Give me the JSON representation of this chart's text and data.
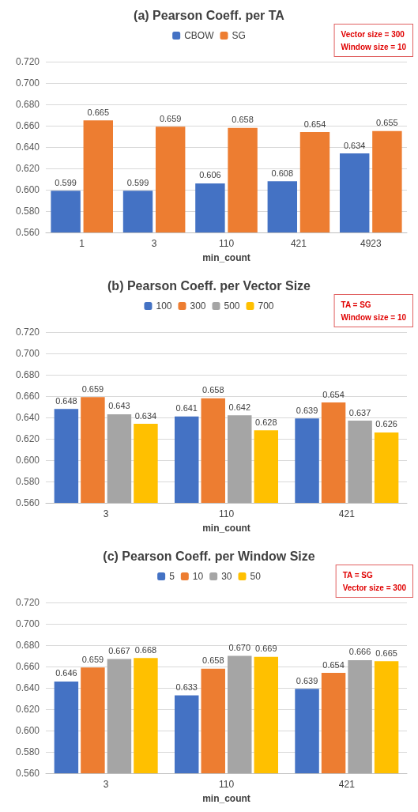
{
  "chart_data": [
    {
      "type": "bar",
      "title": "(a) Pearson Coeff. per TA",
      "xlabel": "min_count",
      "categories": [
        "1",
        "3",
        "110",
        "421",
        "4923"
      ],
      "series": [
        {
          "name": "CBOW",
          "color": "#4472c4",
          "values": [
            0.599,
            0.599,
            0.606,
            0.608,
            0.634
          ]
        },
        {
          "name": "SG",
          "color": "#ed7d31",
          "values": [
            0.665,
            0.659,
            0.658,
            0.654,
            0.655
          ]
        }
      ],
      "ylim": [
        0.56,
        0.72
      ],
      "yticks": [
        {
          "value": 0.56,
          "label": "0.560"
        },
        {
          "value": 0.58,
          "label": "0.580"
        },
        {
          "value": 0.6,
          "label": "0.600"
        },
        {
          "value": 0.62,
          "label": "0.620"
        },
        {
          "value": 0.64,
          "label": "0.640"
        },
        {
          "value": 0.66,
          "label": "0.660"
        },
        {
          "value": 0.68,
          "label": "0.680"
        },
        {
          "value": 0.7,
          "label": "0.700"
        },
        {
          "value": 0.72,
          "label": "0.720"
        }
      ],
      "grid": "y",
      "legend": "top",
      "data_labels": true,
      "annotations": [
        "Vector size = 300",
        "Window size = 10"
      ]
    },
    {
      "type": "bar",
      "title": "(b) Pearson Coeff. per Vector Size",
      "xlabel": "min_count",
      "categories": [
        "3",
        "110",
        "421"
      ],
      "series": [
        {
          "name": "100",
          "color": "#4472c4",
          "values": [
            0.648,
            0.641,
            0.639
          ]
        },
        {
          "name": "300",
          "color": "#ed7d31",
          "values": [
            0.659,
            0.658,
            0.654
          ]
        },
        {
          "name": "500",
          "color": "#a5a5a5",
          "values": [
            0.643,
            0.642,
            0.637
          ]
        },
        {
          "name": "700",
          "color": "#ffc000",
          "values": [
            0.634,
            0.628,
            0.626
          ]
        }
      ],
      "ylim": [
        0.56,
        0.72
      ],
      "yticks": [
        {
          "value": 0.56,
          "label": "0.560"
        },
        {
          "value": 0.58,
          "label": "0.580"
        },
        {
          "value": 0.6,
          "label": "0.600"
        },
        {
          "value": 0.62,
          "label": "0.620"
        },
        {
          "value": 0.64,
          "label": "0.640"
        },
        {
          "value": 0.66,
          "label": "0.660"
        },
        {
          "value": 0.68,
          "label": "0.680"
        },
        {
          "value": 0.7,
          "label": "0.700"
        },
        {
          "value": 0.72,
          "label": "0.720"
        }
      ],
      "grid": "y",
      "legend": "top",
      "data_labels": true,
      "annotations": [
        "TA = SG",
        "Window size = 10"
      ]
    },
    {
      "type": "bar",
      "title": "(c) Pearson Coeff. per Window Size",
      "xlabel": "min_count",
      "categories": [
        "3",
        "110",
        "421"
      ],
      "series": [
        {
          "name": "5",
          "color": "#4472c4",
          "values": [
            0.646,
            0.633,
            0.639
          ],
          "value_labels": [
            "0.646",
            "0.633",
            "0.639"
          ]
        },
        {
          "name": "10",
          "color": "#ed7d31",
          "values": [
            0.659,
            0.658,
            0.654
          ],
          "value_labels": [
            "0.659",
            "0.658",
            "0.654"
          ]
        },
        {
          "name": "30",
          "color": "#a5a5a5",
          "values": [
            0.667,
            0.67,
            0.666
          ],
          "value_labels": [
            "0.667",
            "0.670",
            "0.666"
          ]
        },
        {
          "name": "50",
          "color": "#ffc000",
          "values": [
            0.668,
            0.669,
            0.665
          ],
          "value_labels": [
            "0.668",
            "0.669",
            "0.665"
          ]
        }
      ],
      "ylim": [
        0.56,
        0.72
      ],
      "yticks": [
        {
          "value": 0.56,
          "label": "0.560"
        },
        {
          "value": 0.58,
          "label": "0.580"
        },
        {
          "value": 0.6,
          "label": "0.600"
        },
        {
          "value": 0.62,
          "label": "0.620"
        },
        {
          "value": 0.64,
          "label": "0.640"
        },
        {
          "value": 0.66,
          "label": "0.660"
        },
        {
          "value": 0.68,
          "label": "0.680"
        },
        {
          "value": 0.7,
          "label": "0.700"
        },
        {
          "value": 0.72,
          "label": "0.720"
        }
      ],
      "grid": "y",
      "legend": "top",
      "annotations": [
        "TA = SG",
        "Vector size = 300"
      ]
    }
  ]
}
